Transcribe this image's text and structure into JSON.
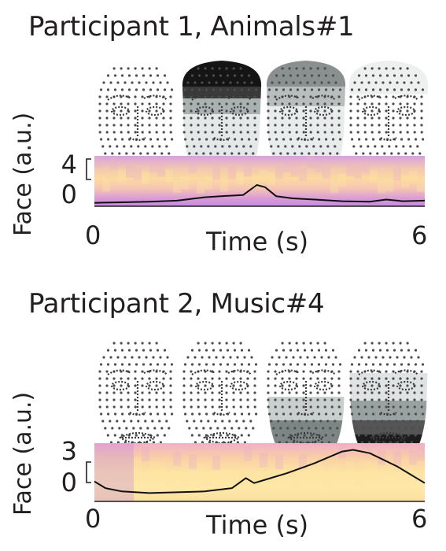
{
  "chart_data": [
    {
      "type": "heatmap",
      "title": "Participant 1, Animals#1",
      "xlabel": "Time (s)",
      "ylabel": "Face (a.u.)",
      "xlim": [
        0,
        6
      ],
      "ylim": [
        -0.5,
        4
      ],
      "xticks": [
        "0",
        "6"
      ],
      "yticks": [
        "4",
        "0"
      ],
      "face_maps": [
        {
          "shade": "none"
        },
        {
          "shade": "upper-dark"
        },
        {
          "shade": "upper-medium"
        },
        {
          "shade": "light"
        }
      ],
      "line": {
        "x": [
          0,
          0.5,
          1,
          1.5,
          2,
          2.3,
          2.7,
          2.95,
          3.1,
          3.3,
          3.6,
          4,
          4.5,
          5,
          5.3,
          5.6,
          6
        ],
        "y": [
          -0.2,
          -0.15,
          -0.1,
          0,
          0.3,
          0.4,
          0.5,
          1.4,
          1.2,
          0.4,
          0.2,
          0.1,
          -0.05,
          -0.1,
          0.1,
          -0.05,
          0
        ]
      }
    },
    {
      "type": "heatmap",
      "title": "Participant 2, Music#4",
      "xlabel": "Time (s)",
      "ylabel": "Face (a.u.)",
      "xlim": [
        0,
        6
      ],
      "ylim": [
        -0.5,
        3
      ],
      "xticks": [
        "0",
        "6"
      ],
      "yticks": [
        "3",
        "0"
      ],
      "face_maps": [
        {
          "shade": "none"
        },
        {
          "shade": "none"
        },
        {
          "shade": "lower-medium"
        },
        {
          "shade": "lower-dark"
        }
      ],
      "line": {
        "x": [
          0,
          0.2,
          0.5,
          1,
          1.5,
          2,
          2.5,
          2.75,
          2.9,
          3.1,
          3.5,
          4,
          4.5,
          4.7,
          5,
          5.5,
          6
        ],
        "y": [
          0.7,
          0.3,
          0.1,
          0,
          0.05,
          0.1,
          0.3,
          0.9,
          0.6,
          0.8,
          1.2,
          1.8,
          2.5,
          2.6,
          2.4,
          1.6,
          0.6
        ]
      }
    }
  ]
}
